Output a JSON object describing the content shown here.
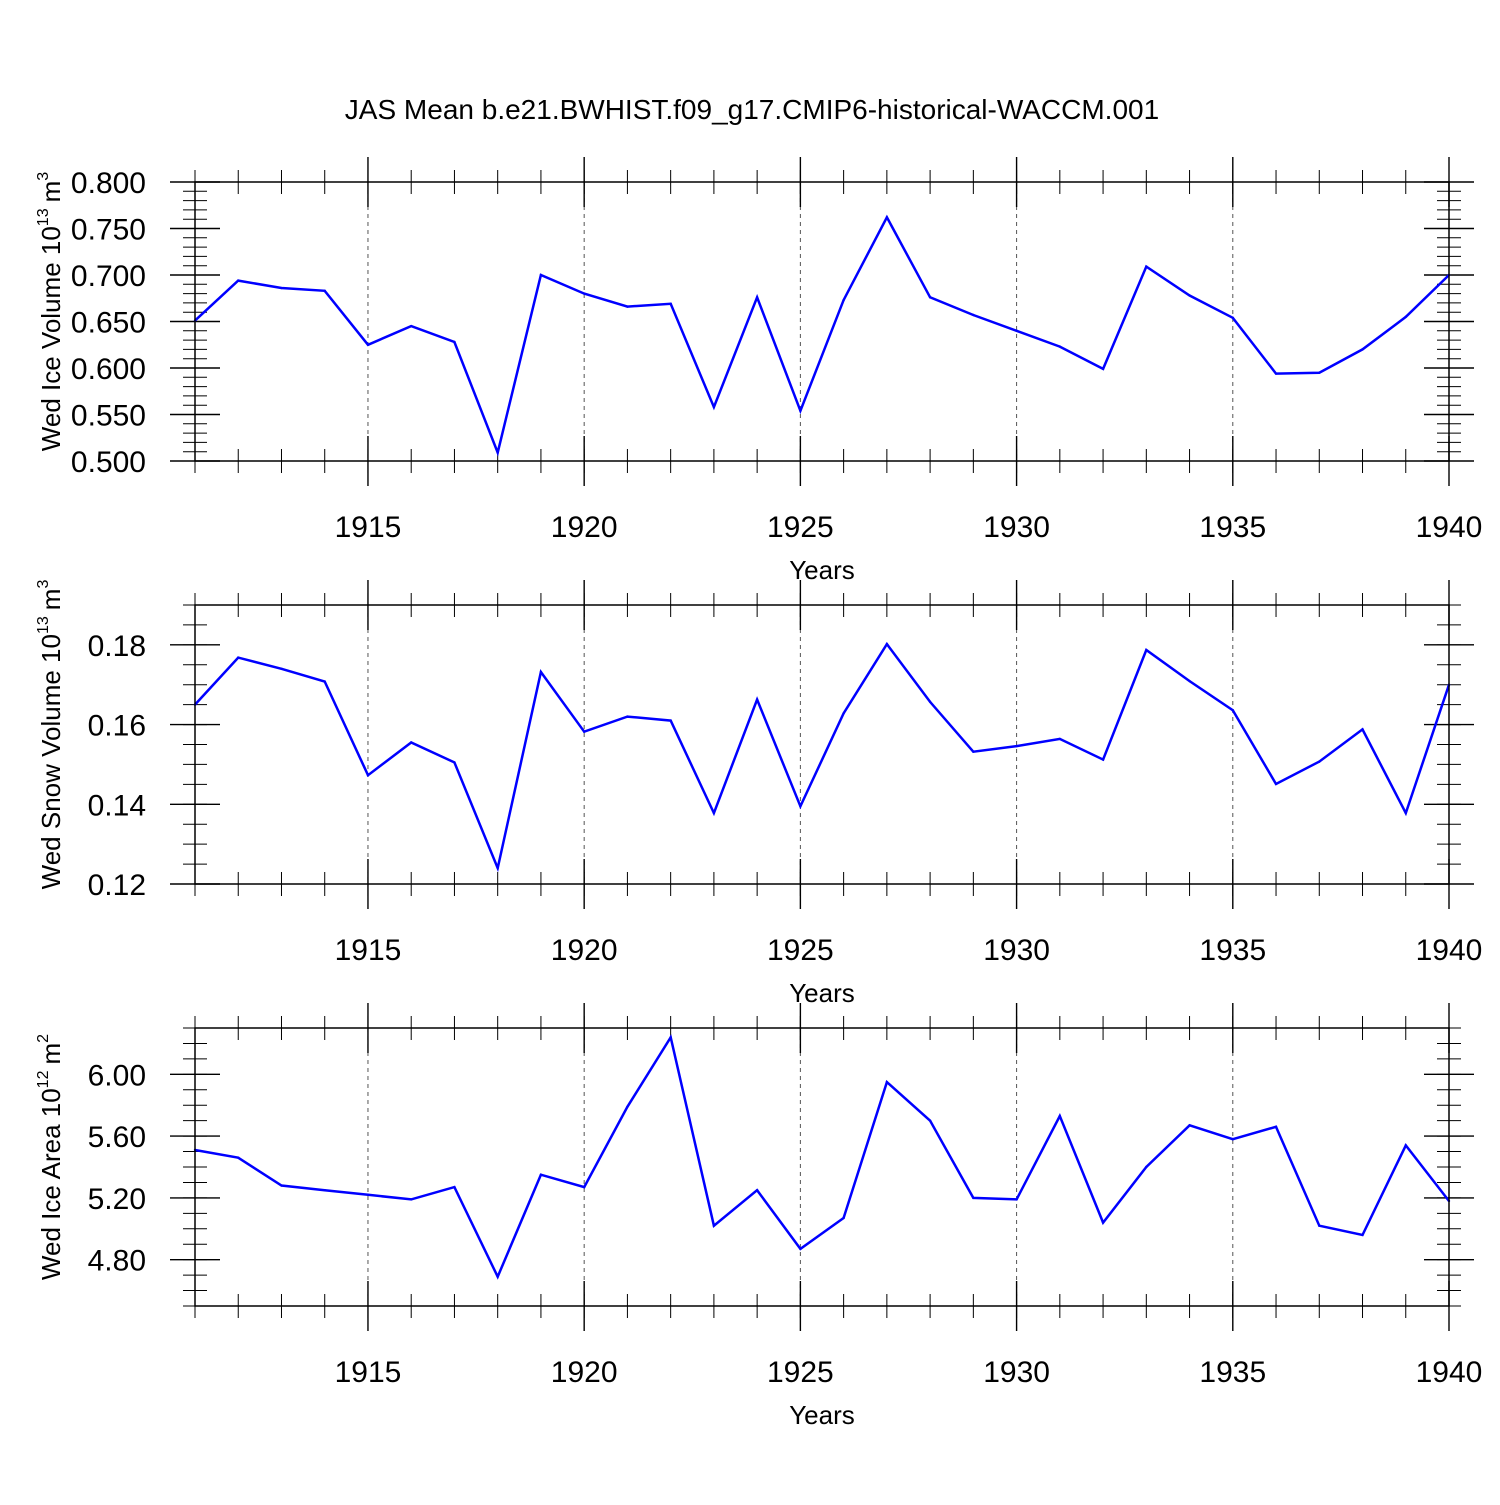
{
  "title": "JAS Mean b.e21.BWHIST.f09_g17.CMIP6-historical-WACCM.001",
  "chart_data": [
    {
      "type": "line",
      "ylabel": "Wed Ice Volume 10",
      "ylabel_exponent": "13",
      "ylabel_unit": "m",
      "ylabel_unit_exponent": "3",
      "xlabel": "Years",
      "xlim": [
        1911,
        1940
      ],
      "ylim": [
        0.5,
        0.8
      ],
      "y_ticks": [
        0.5,
        0.55,
        0.6,
        0.65,
        0.7,
        0.75,
        0.8
      ],
      "y_tick_labels": [
        "0.500",
        "0.550",
        "0.600",
        "0.650",
        "0.700",
        "0.750",
        "0.800"
      ],
      "y_minor_step": 0.01,
      "x_ticks": [
        1915,
        1920,
        1925,
        1930,
        1935,
        1940
      ],
      "x_tick_labels": [
        "1915",
        "1920",
        "1925",
        "1930",
        "1935",
        "1940"
      ],
      "grid": "vertical dashed at major x ticks",
      "series": [
        {
          "name": "Wed Ice Volume",
          "color": "#0000ff",
          "x": [
            1911,
            1912,
            1913,
            1914,
            1915,
            1916,
            1917,
            1918,
            1919,
            1920,
            1921,
            1922,
            1923,
            1924,
            1925,
            1926,
            1927,
            1928,
            1929,
            1930,
            1931,
            1932,
            1933,
            1934,
            1935,
            1936,
            1937,
            1938,
            1939,
            1940
          ],
          "values": [
            0.651,
            0.694,
            0.686,
            0.683,
            0.625,
            0.645,
            0.628,
            0.509,
            0.7,
            0.68,
            0.666,
            0.669,
            0.558,
            0.676,
            0.554,
            0.673,
            0.762,
            0.676,
            0.657,
            0.64,
            0.623,
            0.599,
            0.709,
            0.678,
            0.654,
            0.594,
            0.595,
            0.62,
            0.655,
            0.7
          ]
        }
      ]
    },
    {
      "type": "line",
      "ylabel": "Wed Snow Volume 10",
      "ylabel_exponent": "13",
      "ylabel_unit": "m",
      "ylabel_unit_exponent": "3",
      "xlabel": "Years",
      "xlim": [
        1911,
        1940
      ],
      "ylim": [
        0.12,
        0.19
      ],
      "y_ticks": [
        0.12,
        0.14,
        0.16,
        0.18
      ],
      "y_tick_labels": [
        "0.12",
        "0.14",
        "0.16",
        "0.18"
      ],
      "y_minor_step": 0.005,
      "x_ticks": [
        1915,
        1920,
        1925,
        1930,
        1935,
        1940
      ],
      "x_tick_labels": [
        "1915",
        "1920",
        "1925",
        "1930",
        "1935",
        "1940"
      ],
      "grid": "vertical dashed at major x ticks",
      "series": [
        {
          "name": "Wed Snow Volume",
          "color": "#0000ff",
          "x": [
            1911,
            1912,
            1913,
            1914,
            1915,
            1916,
            1917,
            1918,
            1919,
            1920,
            1921,
            1922,
            1923,
            1924,
            1925,
            1926,
            1927,
            1928,
            1929,
            1930,
            1931,
            1932,
            1933,
            1934,
            1935,
            1936,
            1937,
            1938,
            1939,
            1940
          ],
          "values": [
            0.165,
            0.1768,
            0.174,
            0.1708,
            0.1473,
            0.1555,
            0.1505,
            0.124,
            0.1732,
            0.1582,
            0.162,
            0.161,
            0.1378,
            0.1663,
            0.1395,
            0.1628,
            0.1802,
            0.1657,
            0.1532,
            0.1546,
            0.1564,
            0.1512,
            0.1787,
            0.1709,
            0.1636,
            0.1451,
            0.1507,
            0.1588,
            0.1378,
            0.17
          ]
        }
      ]
    },
    {
      "type": "line",
      "ylabel": "Wed Ice Area 10",
      "ylabel_exponent": "12",
      "ylabel_unit": "m",
      "ylabel_unit_exponent": "2",
      "xlabel": "Years",
      "xlim": [
        1911,
        1940
      ],
      "ylim": [
        4.5,
        6.3
      ],
      "y_ticks": [
        4.8,
        5.2,
        5.6,
        6.0
      ],
      "y_tick_labels": [
        "4.80",
        "5.20",
        "5.60",
        "6.00"
      ],
      "y_minor_step": 0.1,
      "x_ticks": [
        1915,
        1920,
        1925,
        1930,
        1935,
        1940
      ],
      "x_tick_labels": [
        "1915",
        "1920",
        "1925",
        "1930",
        "1935",
        "1940"
      ],
      "grid": "vertical dashed at major x ticks",
      "series": [
        {
          "name": "Wed Ice Area",
          "color": "#0000ff",
          "x": [
            1911,
            1912,
            1913,
            1914,
            1915,
            1916,
            1917,
            1918,
            1919,
            1920,
            1921,
            1922,
            1923,
            1924,
            1925,
            1926,
            1927,
            1928,
            1929,
            1930,
            1931,
            1932,
            1933,
            1934,
            1935,
            1936,
            1937,
            1938,
            1939,
            1940
          ],
          "values": [
            5.51,
            5.46,
            5.28,
            5.25,
            5.22,
            5.19,
            5.27,
            4.69,
            5.35,
            5.27,
            5.79,
            6.24,
            5.02,
            5.25,
            4.87,
            5.07,
            5.95,
            5.7,
            5.2,
            5.19,
            5.73,
            5.04,
            5.4,
            5.67,
            5.58,
            5.66,
            5.02,
            4.96,
            5.54,
            5.18
          ]
        }
      ]
    }
  ]
}
